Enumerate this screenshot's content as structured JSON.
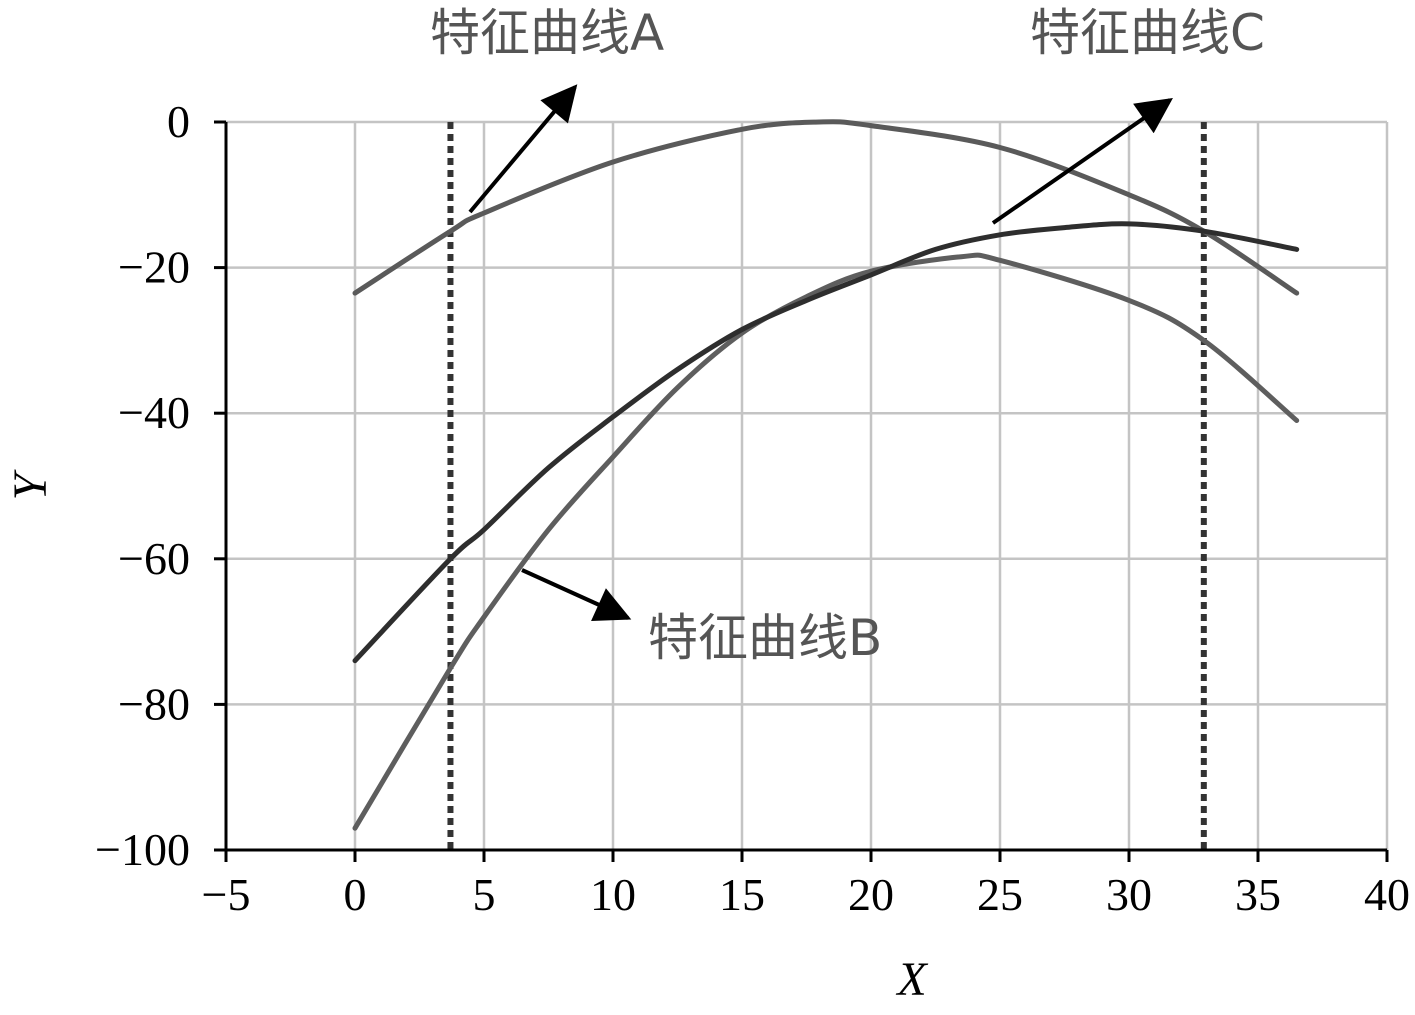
{
  "chart_data": {
    "type": "line",
    "xlabel": "X",
    "ylabel": "Y",
    "xlim": [
      -5,
      40
    ],
    "ylim": [
      -100,
      0
    ],
    "xticks": [
      -5,
      0,
      5,
      10,
      15,
      20,
      25,
      30,
      35,
      40
    ],
    "yticks": [
      0,
      -20,
      -40,
      -60,
      -80,
      -100
    ],
    "xtick_labels": [
      "−5",
      "0",
      "5",
      "10",
      "15",
      "20",
      "25",
      "30",
      "35",
      "40"
    ],
    "ytick_labels": [
      "0",
      "−20",
      "−40",
      "−60",
      "−80",
      "−100"
    ],
    "grid": true,
    "series": [
      {
        "name": "特征曲线A",
        "color": "#5a5a5a",
        "x": [
          0,
          3.7,
          5,
          10,
          15,
          18,
          20,
          25,
          30,
          32.9,
          36.5
        ],
        "y": [
          -23.5,
          -15,
          -12.5,
          -5.5,
          -1,
          0,
          -0.5,
          -3.5,
          -10,
          -15,
          -23.5
        ]
      },
      {
        "name": "特征曲线B",
        "color": "#5e5e5e",
        "x": [
          0,
          3.7,
          5,
          7.5,
          10,
          12.5,
          15,
          17.5,
          20,
          23.5,
          25,
          30,
          32.9,
          36.5
        ],
        "y": [
          -97,
          -75,
          -68,
          -56,
          -46,
          -36.5,
          -29,
          -24,
          -20.5,
          -18.5,
          -19,
          -24.5,
          -30,
          -41
        ]
      },
      {
        "name": "特征曲线C",
        "color": "#2e2e2e",
        "x": [
          0,
          3.7,
          5,
          7.5,
          10,
          12.5,
          15,
          17.5,
          20,
          22.5,
          25,
          27.5,
          30,
          32.9,
          36.5
        ],
        "y": [
          -74,
          -60,
          -56,
          -47.5,
          -40.5,
          -34,
          -28.5,
          -24.5,
          -21,
          -17.5,
          -15.5,
          -14.5,
          -14,
          -15,
          -17.5
        ]
      }
    ],
    "vlines": [
      3.7,
      32.9
    ],
    "annotations": [
      {
        "text": "特征曲线A",
        "series": "特征曲线A"
      },
      {
        "text": "特征曲线B",
        "series": "特征曲线B"
      },
      {
        "text": "特征曲线C",
        "series": "特征曲线C"
      }
    ]
  }
}
